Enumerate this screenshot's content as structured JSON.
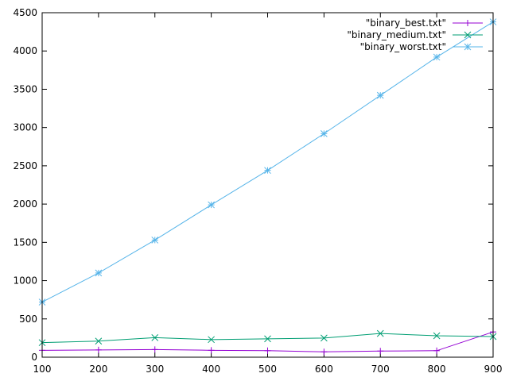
{
  "chart_data": {
    "type": "line",
    "title": "",
    "xlabel": "",
    "ylabel": "",
    "xlim": [
      100,
      900
    ],
    "ylim": [
      0,
      4500
    ],
    "x_ticks": [
      100,
      200,
      300,
      400,
      500,
      600,
      700,
      800,
      900
    ],
    "y_ticks": [
      0,
      500,
      1000,
      1500,
      2000,
      2500,
      3000,
      3500,
      4000,
      4500
    ],
    "grid": false,
    "legend_position": "top-right",
    "x": [
      100,
      200,
      300,
      400,
      500,
      600,
      700,
      800,
      900
    ],
    "series": [
      {
        "name": "\"binary_best.txt\"",
        "color": "#9400d3",
        "marker": "plus",
        "values": [
          90,
          95,
          100,
          90,
          85,
          70,
          80,
          85,
          330
        ]
      },
      {
        "name": "\"binary_medium.txt\"",
        "color": "#009e73",
        "marker": "cross",
        "values": [
          190,
          210,
          255,
          230,
          240,
          250,
          310,
          280,
          270
        ]
      },
      {
        "name": "\"binary_worst.txt\"",
        "color": "#56b4e9",
        "marker": "star",
        "values": [
          720,
          1100,
          1530,
          1990,
          2440,
          2920,
          3420,
          3920,
          4380
        ]
      }
    ]
  }
}
